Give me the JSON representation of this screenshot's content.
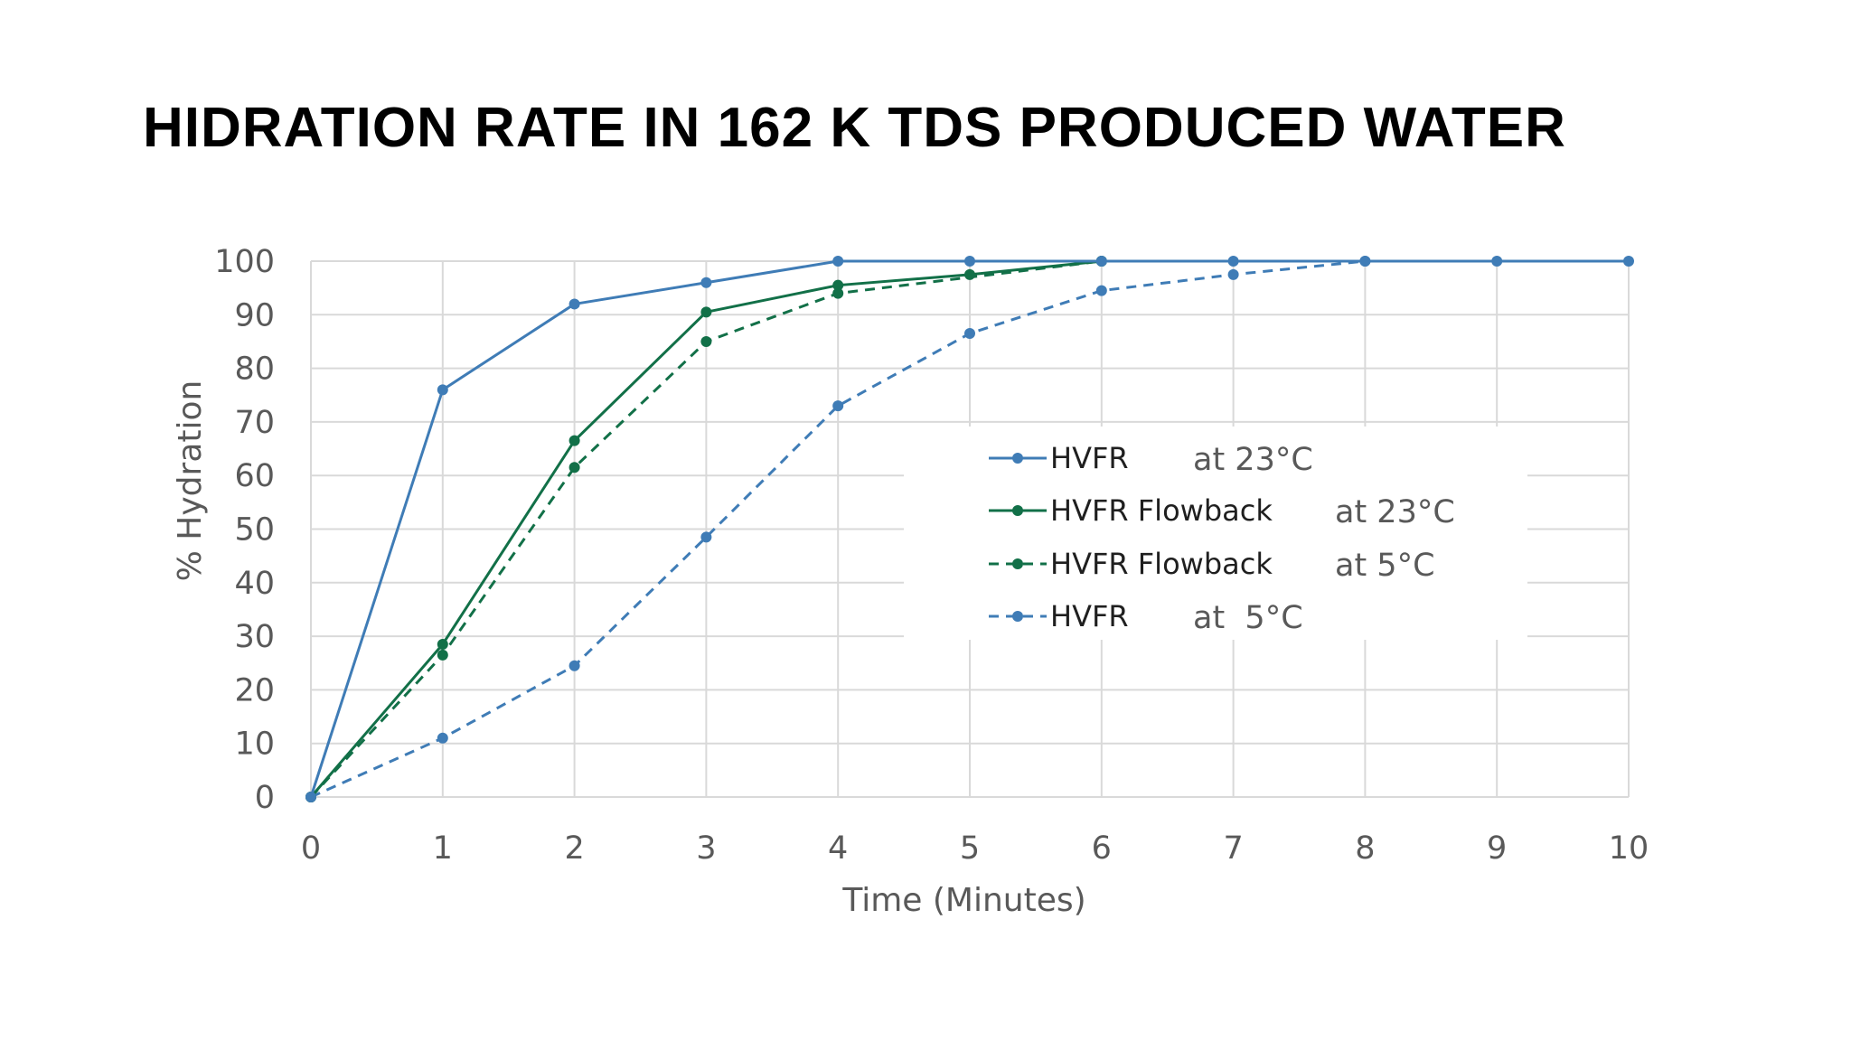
{
  "title": "HIDRATION RATE IN 162 K TDS PRODUCED WATER",
  "chart_data": {
    "type": "line",
    "title": "HIDRATION RATE IN 162 K TDS PRODUCED WATER",
    "xlabel": "Time (Minutes)",
    "ylabel": "% Hydration",
    "x": [
      0,
      1,
      2,
      3,
      4,
      5,
      6,
      7,
      8,
      9,
      10
    ],
    "xlim": [
      0,
      10
    ],
    "ylim": [
      0,
      100
    ],
    "xticks": [
      0,
      1,
      2,
      3,
      4,
      5,
      6,
      7,
      8,
      9,
      10
    ],
    "yticks": [
      0,
      10,
      20,
      30,
      40,
      50,
      60,
      70,
      80,
      90,
      100
    ],
    "grid": true,
    "legend_position": "center-right",
    "series": [
      {
        "name": "HVFR",
        "note": "at 23°C",
        "style": "solid",
        "color": "#3f7cb6",
        "values": [
          0,
          76,
          92,
          96,
          100,
          100,
          100,
          100,
          100,
          100,
          100
        ]
      },
      {
        "name": "HVFR Flowback",
        "note": "at 23°C",
        "style": "solid",
        "color": "#127048",
        "values": [
          0,
          28.5,
          66.5,
          90.5,
          95.5,
          97.5,
          100,
          null,
          null,
          null,
          null
        ]
      },
      {
        "name": "HVFR Flowback",
        "note": "at 5°C",
        "style": "dashed",
        "color": "#127048",
        "values": [
          0,
          26.5,
          61.5,
          85,
          94,
          null,
          100,
          null,
          null,
          null,
          null
        ]
      },
      {
        "name": "HVFR",
        "note": "at  5°C",
        "style": "dashed",
        "color": "#3f7cb6",
        "values": [
          0,
          11,
          24.5,
          48.5,
          73,
          86.5,
          94.5,
          97.5,
          100,
          null,
          null
        ]
      }
    ]
  }
}
